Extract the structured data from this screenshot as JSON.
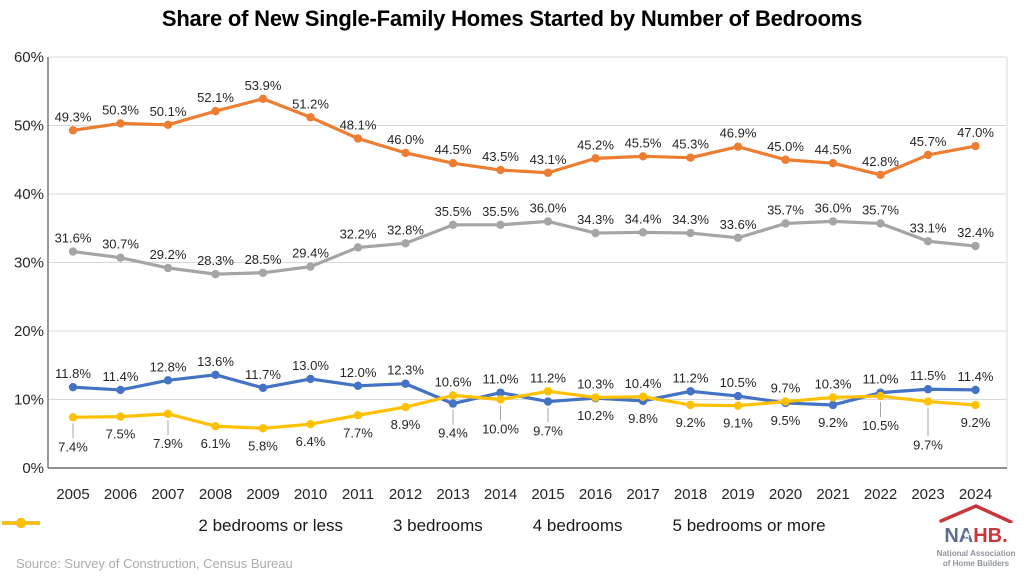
{
  "title": "Share of New Single-Family Homes Started by Number of Bedrooms",
  "chart_data": {
    "type": "line",
    "x": [
      "2005",
      "2006",
      "2007",
      "2008",
      "2009",
      "2010",
      "2011",
      "2012",
      "2013",
      "2014",
      "2015",
      "2016",
      "2017",
      "2018",
      "2019",
      "2020",
      "2021",
      "2022",
      "2023",
      "2024"
    ],
    "series": [
      {
        "name": "2 bedrooms or less",
        "color": "#4472C4",
        "values": [
          11.8,
          11.4,
          12.8,
          13.6,
          11.7,
          13.0,
          12.0,
          12.3,
          9.4,
          11.0,
          9.7,
          10.2,
          9.8,
          11.2,
          10.5,
          9.5,
          9.2,
          11.0,
          11.5,
          11.4
        ],
        "label_pos": [
          "a",
          "a",
          "a",
          "a",
          "a",
          "a",
          "a",
          "a",
          "bl",
          "a",
          "bl",
          "b",
          "b",
          "a",
          "a",
          "b",
          "b",
          "a",
          "a",
          "a"
        ]
      },
      {
        "name": "3 bedrooms",
        "color": "#ED7D31",
        "values": [
          49.3,
          50.3,
          50.1,
          52.1,
          53.9,
          51.2,
          48.1,
          46.0,
          44.5,
          43.5,
          43.1,
          45.2,
          45.5,
          45.3,
          46.9,
          45.0,
          44.5,
          42.8,
          45.7,
          47.0
        ],
        "label_pos": [
          "a",
          "a",
          "a",
          "a",
          "a",
          "a",
          "a",
          "a",
          "a",
          "a",
          "a",
          "a",
          "a",
          "a",
          "a",
          "a",
          "a",
          "a",
          "a",
          "a"
        ]
      },
      {
        "name": "4 bedrooms",
        "color": "#A5A5A5",
        "values": [
          31.6,
          30.7,
          29.2,
          28.3,
          28.5,
          29.4,
          32.2,
          32.8,
          35.5,
          35.5,
          36.0,
          34.3,
          34.4,
          34.3,
          33.6,
          35.7,
          36.0,
          35.7,
          33.1,
          32.4
        ],
        "label_pos": [
          "a",
          "a",
          "a",
          "a",
          "a",
          "a",
          "a",
          "a",
          "a",
          "a",
          "a",
          "a",
          "a",
          "a",
          "a",
          "a",
          "a",
          "a",
          "a",
          "a"
        ]
      },
      {
        "name": "5 bedrooms or more",
        "color": "#FFC000",
        "values": [
          7.4,
          7.5,
          7.9,
          6.1,
          5.8,
          6.4,
          7.7,
          8.9,
          10.6,
          10.0,
          11.2,
          10.3,
          10.4,
          9.2,
          9.1,
          9.7,
          10.3,
          10.5,
          9.7,
          9.2
        ],
        "label_pos": [
          "bl",
          "b",
          "bl",
          "b",
          "b",
          "b",
          "b",
          "b",
          "a",
          "bl",
          "a",
          "a",
          "a",
          "b",
          "b",
          "a",
          "a",
          "bl",
          "bll",
          "b"
        ]
      }
    ],
    "xlabel": "",
    "ylabel": "",
    "ylim": [
      0,
      60
    ],
    "yticks": [
      "0%",
      "10%",
      "20%",
      "30%",
      "40%",
      "50%",
      "60%"
    ],
    "label_format": "{value}%",
    "grid": true,
    "legend_position": "bottom",
    "colors": {
      "grid": "#D9D9D9",
      "axis": "#6E6E6E",
      "label_text": "#262626",
      "leader": "#A6A6A6"
    }
  },
  "source": "Source: Survey of Construction, Census Bureau",
  "logo": {
    "text_na": "NA",
    "text_hb": "HB.",
    "star": "★",
    "subtitle1": "National Association",
    "subtitle2": "of Home Builders"
  }
}
